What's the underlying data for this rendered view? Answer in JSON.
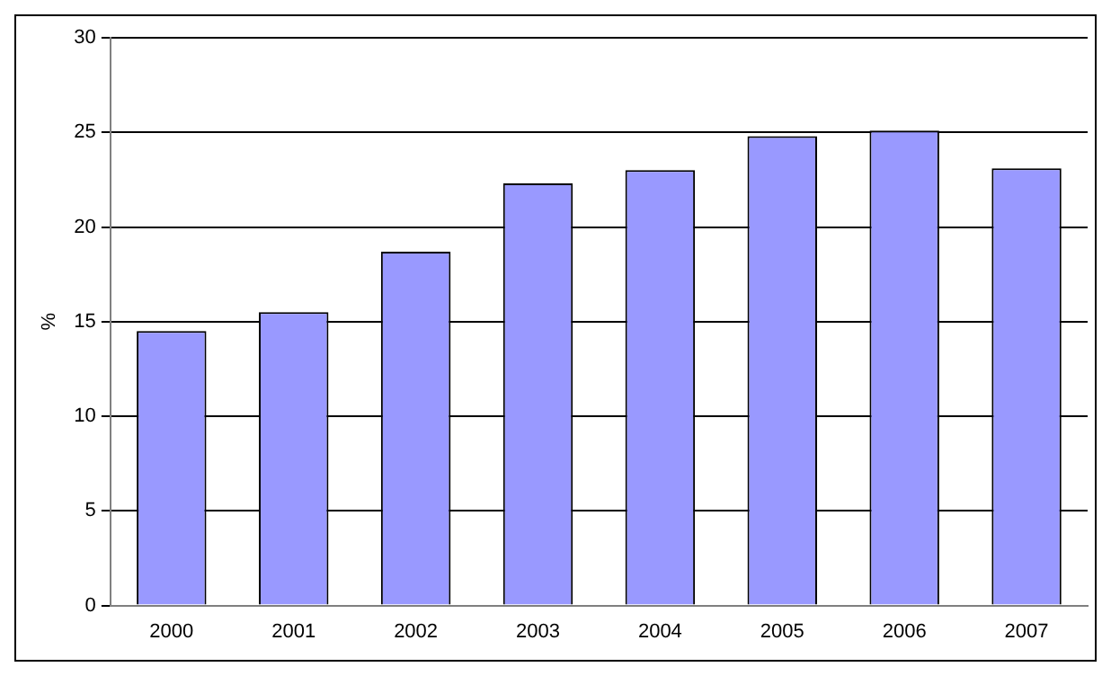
{
  "chart_data": {
    "type": "bar",
    "ylabel": "%",
    "categories": [
      "2000",
      "2001",
      "2002",
      "2003",
      "2004",
      "2005",
      "2006",
      "2007"
    ],
    "values": [
      14.5,
      15.5,
      18.7,
      22.3,
      23.0,
      24.8,
      25.1,
      23.1
    ],
    "color": "#9999ff",
    "ylim": [
      0,
      30
    ],
    "yticks": [
      0,
      5,
      10,
      15,
      20,
      25,
      30
    ],
    "grid": "y",
    "legend": false
  }
}
